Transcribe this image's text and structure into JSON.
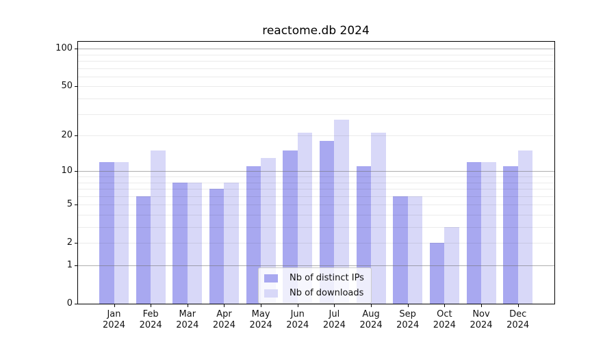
{
  "title": "reactome.db 2024",
  "colors": {
    "distinct_ips": "#a8a8f0",
    "downloads": "#d8d8f8",
    "grid_major": "rgba(110,110,110,0.55)",
    "grid_minor": "rgba(0,0,0,0.08)",
    "spine": "#000000"
  },
  "legend": {
    "items": [
      {
        "label": "Nb of distinct IPs",
        "color_key": "distinct_ips"
      },
      {
        "label": "Nb of downloads",
        "color_key": "downloads"
      }
    ]
  },
  "chart_data": {
    "type": "bar",
    "title": "reactome.db 2024",
    "categories": [
      "Jan 2024",
      "Feb 2024",
      "Mar 2024",
      "Apr 2024",
      "May 2024",
      "Jun 2024",
      "Jul 2024",
      "Aug 2024",
      "Sep 2024",
      "Oct 2024",
      "Nov 2024",
      "Dec 2024"
    ],
    "x_months": [
      "Jan",
      "Feb",
      "Mar",
      "Apr",
      "May",
      "Jun",
      "Jul",
      "Aug",
      "Sep",
      "Oct",
      "Nov",
      "Dec"
    ],
    "x_year_label": "2024",
    "series": [
      {
        "name": "Nb of distinct IPs",
        "values": [
          12,
          6,
          8,
          7,
          11,
          15,
          18,
          11,
          6,
          2,
          12,
          11
        ]
      },
      {
        "name": "Nb of downloads",
        "values": [
          12,
          15,
          8,
          8,
          13,
          21,
          27,
          21,
          6,
          3,
          12,
          15
        ]
      }
    ],
    "xlabel": "",
    "ylabel": "",
    "yscale": "log1p",
    "ylim": [
      0,
      115
    ],
    "y_ticks": [
      100,
      50,
      20,
      10,
      5,
      2,
      1,
      0
    ],
    "y_minor_gridlines": [
      2,
      3,
      4,
      5,
      6,
      7,
      8,
      9,
      20,
      30,
      40,
      50,
      60,
      70,
      80,
      90
    ],
    "y_major_gridlines": [
      1,
      10,
      100
    ],
    "grid": true,
    "legend_position": "lower center"
  }
}
